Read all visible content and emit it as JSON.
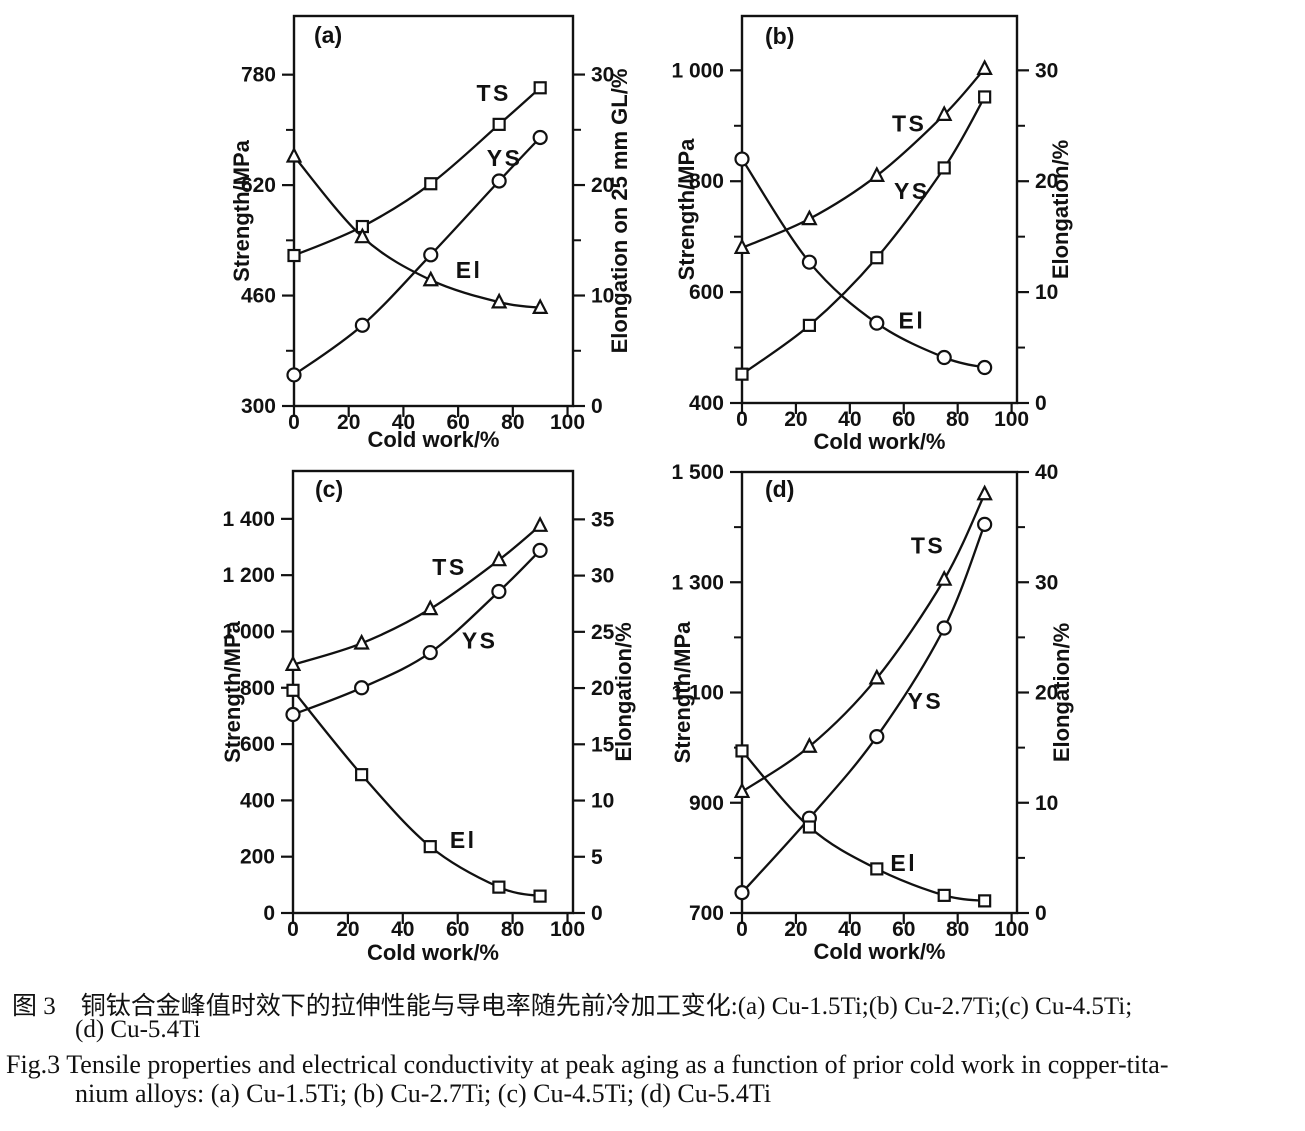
{
  "figure": {
    "caption_zh_line1": "图 3　铜钛合金峰值时效下的拉伸性能与导电率随先前冷加工变化:(a) Cu-1.5Ti;(b) Cu-2.7Ti;(c) Cu-4.5Ti;",
    "caption_zh_line2": "(d) Cu-5.4Ti",
    "caption_en_line1": "Fig.3 Tensile properties and electrical conductivity at peak aging as a function of prior cold work in copper-tita-",
    "caption_en_line2": "nium alloys: (a) Cu-1.5Ti; (b) Cu-2.7Ti; (c) Cu-4.5Ti; (d) Cu-5.4Ti",
    "ink_color": "#111111",
    "background_color": "#ffffff"
  },
  "chart_data": [
    {
      "id": "a",
      "panel_label": "(a)",
      "alloy": "Cu-1.5Ti",
      "type": "line",
      "xlabel": "Cold work/%",
      "ylabel_left": "Strength/MPa",
      "ylabel_right": "Elongation on 25 mm GL/%",
      "x": [
        0,
        25,
        50,
        75,
        90
      ],
      "xticks": [
        0,
        20,
        40,
        60,
        80,
        100
      ],
      "xlim": [
        0,
        102
      ],
      "ylim_left": [
        300,
        865
      ],
      "yticks_left": [
        300,
        460,
        620,
        780
      ],
      "ytick_labels_left": [
        "300",
        "460",
        "620",
        "780"
      ],
      "yminor_left": [
        380,
        540,
        700
      ],
      "ylim_right": [
        0,
        35.3
      ],
      "yticks_right": [
        0,
        10,
        20,
        30
      ],
      "ytick_labels_right": [
        "0",
        "10",
        "20",
        "30"
      ],
      "yminor_right": [
        5,
        15,
        25
      ],
      "grid": false,
      "series": [
        {
          "name": "TS",
          "axis": "left",
          "marker": "square",
          "values": [
            518,
            560,
            622,
            708,
            761
          ],
          "label_pos": [
            73,
            742
          ]
        },
        {
          "name": "YS",
          "axis": "left",
          "marker": "circle",
          "values": [
            345,
            417,
            519,
            626,
            689
          ],
          "label_pos": [
            77,
            648
          ]
        },
        {
          "name": "El",
          "axis": "right",
          "marker": "triangle",
          "values": [
            22.6,
            15.3,
            11.4,
            9.4,
            8.9
          ],
          "label_pos": [
            64,
            11.6
          ]
        }
      ]
    },
    {
      "id": "b",
      "panel_label": "(b)",
      "alloy": "Cu-2.7Ti",
      "type": "line",
      "xlabel": "Cold work/%",
      "ylabel_left": "Strength/MPa",
      "ylabel_right": "Elongation/%",
      "x": [
        0,
        25,
        50,
        75,
        90
      ],
      "xticks": [
        0,
        20,
        40,
        60,
        80,
        100
      ],
      "xlim": [
        0,
        102
      ],
      "ylim_left": [
        400,
        1098
      ],
      "yticks_left": [
        400,
        600,
        800,
        1000
      ],
      "ytick_labels_left": [
        "400",
        "600",
        "800",
        "1 000"
      ],
      "yminor_left": [
        500,
        700,
        900
      ],
      "ylim_right": [
        0,
        34.9
      ],
      "yticks_right": [
        0,
        10,
        20,
        30
      ],
      "ytick_labels_right": [
        "0",
        "10",
        "20",
        "30"
      ],
      "yminor_right": [
        5,
        15,
        25
      ],
      "grid": false,
      "series": [
        {
          "name": "TS",
          "axis": "left",
          "marker": "triangle",
          "values": [
            680,
            732,
            810,
            920,
            1003
          ],
          "label_pos": [
            62,
            890
          ]
        },
        {
          "name": "YS",
          "axis": "left",
          "marker": "square",
          "values": [
            452,
            540,
            662,
            824,
            952
          ],
          "label_pos": [
            63,
            768
          ]
        },
        {
          "name": "El",
          "axis": "right",
          "marker": "circle",
          "values": [
            22.0,
            12.7,
            7.2,
            4.1,
            3.2
          ],
          "label_pos": [
            63,
            6.7
          ]
        }
      ]
    },
    {
      "id": "c",
      "panel_label": "(c)",
      "alloy": "Cu-4.5Ti",
      "type": "line",
      "xlabel": "Cold work/%",
      "ylabel_left": "Strength/MPa",
      "ylabel_right": "Elongation/%",
      "x": [
        0,
        25,
        50,
        75,
        90
      ],
      "xticks": [
        0,
        20,
        40,
        60,
        80,
        100
      ],
      "xlim": [
        0,
        102
      ],
      "ylim_left": [
        0,
        1570
      ],
      "yticks_left": [
        0,
        200,
        400,
        600,
        800,
        1000,
        1200,
        1400
      ],
      "ytick_labels_left": [
        "0",
        "200",
        "400",
        "600",
        "800",
        "1 000",
        "1 200",
        "1 400"
      ],
      "yminor_left": [],
      "ylim_right": [
        0,
        39.3
      ],
      "yticks_right": [
        0,
        5,
        10,
        15,
        20,
        25,
        30,
        35
      ],
      "ytick_labels_right": [
        "0",
        "5",
        "10",
        "15",
        "20",
        "25",
        "30",
        "35"
      ],
      "yminor_right": [],
      "grid": false,
      "series": [
        {
          "name": "TS",
          "axis": "left",
          "marker": "triangle",
          "values": [
            882,
            958,
            1080,
            1254,
            1376
          ],
          "label_pos": [
            57,
            1200
          ]
        },
        {
          "name": "YS",
          "axis": "left",
          "marker": "circle",
          "values": [
            705,
            800,
            925,
            1142,
            1288
          ],
          "label_pos": [
            68,
            940
          ]
        },
        {
          "name": "El",
          "axis": "right",
          "marker": "square",
          "values": [
            19.8,
            12.3,
            5.9,
            2.3,
            1.5
          ],
          "label_pos": [
            62,
            5.8
          ]
        }
      ]
    },
    {
      "id": "d",
      "panel_label": "(d)",
      "alloy": "Cu-5.4Ti",
      "type": "line",
      "xlabel": "Cold work/%",
      "ylabel_left": "Strength/MPa",
      "ylabel_right": "Elongation/%",
      "x": [
        0,
        25,
        50,
        75,
        90
      ],
      "xticks": [
        0,
        20,
        40,
        60,
        80,
        100
      ],
      "xlim": [
        0,
        102
      ],
      "ylim_left": [
        700,
        1500
      ],
      "yticks_left": [
        700,
        900,
        1100,
        1300,
        1500
      ],
      "ytick_labels_left": [
        "700",
        "900",
        "1 100",
        "1 300",
        "1 500"
      ],
      "yminor_left": [
        800,
        1000,
        1200,
        1400
      ],
      "ylim_right": [
        0,
        40
      ],
      "yticks_right": [
        0,
        10,
        20,
        30,
        40
      ],
      "ytick_labels_right": [
        "0",
        "10",
        "20",
        "30",
        "40"
      ],
      "yminor_right": [
        5,
        15,
        25,
        35
      ],
      "grid": false,
      "series": [
        {
          "name": "TS",
          "axis": "left",
          "marker": "triangle",
          "values": [
            920,
            1002,
            1126,
            1305,
            1460
          ],
          "label_pos": [
            69,
            1352
          ]
        },
        {
          "name": "YS",
          "axis": "left",
          "marker": "circle",
          "values": [
            737,
            872,
            1020,
            1217,
            1405
          ],
          "label_pos": [
            68,
            1070
          ]
        },
        {
          "name": "El",
          "axis": "right",
          "marker": "square",
          "values": [
            14.7,
            7.8,
            4.0,
            1.6,
            1.1
          ],
          "label_pos": [
            60,
            3.8
          ]
        }
      ]
    }
  ]
}
